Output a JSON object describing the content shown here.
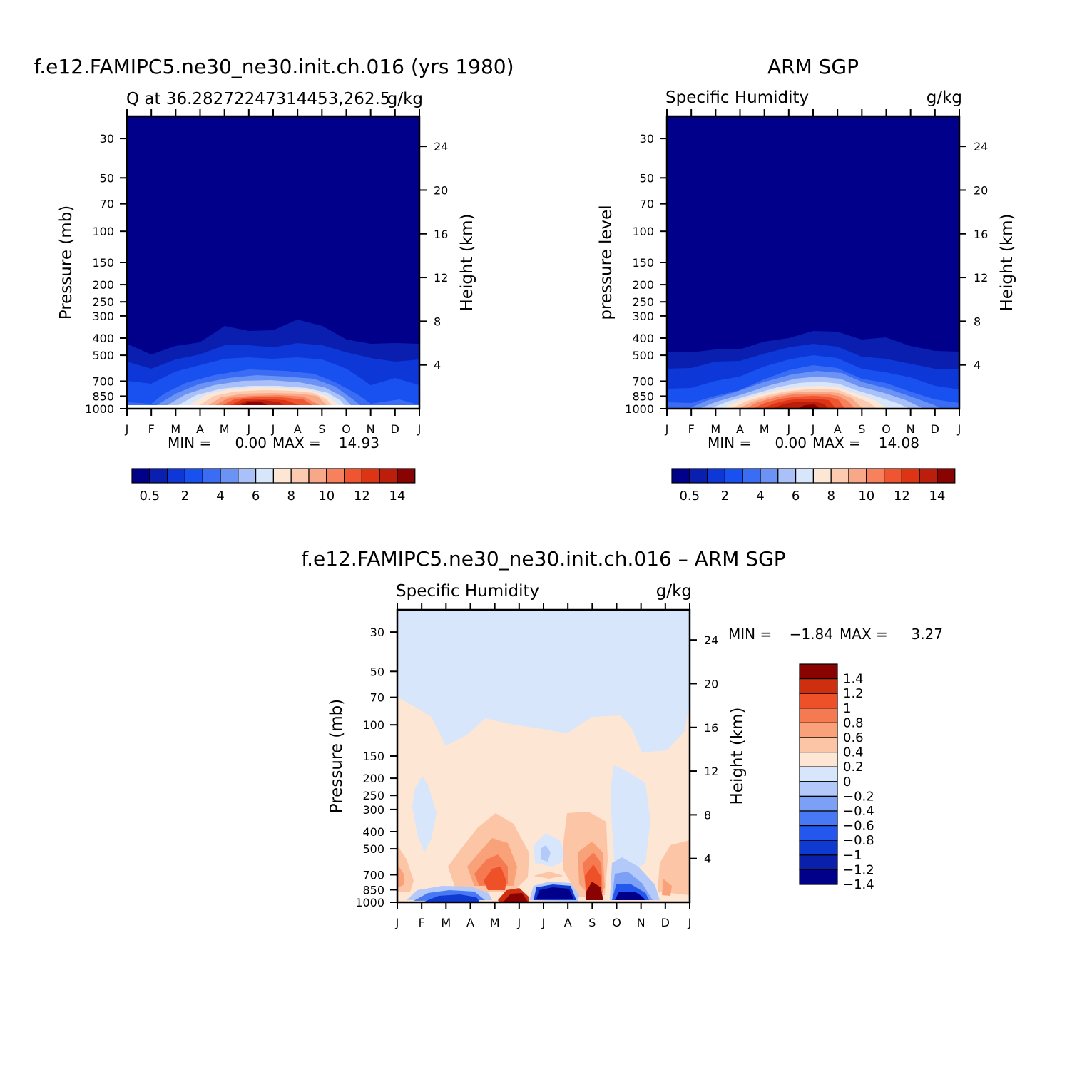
{
  "chart_data": [
    {
      "type": "heatmap",
      "title": "f.e12.FAMIPC5.ne30_ne30.init.ch.016 (yrs 1980)",
      "subtitle_left": "Q at 36.28272247314453,262.5",
      "subtitle_right": "g/kg",
      "ylabel": "Pressure (mb)",
      "ylabel_right": "Height (km)",
      "x_ticks": [
        "J",
        "F",
        "M",
        "A",
        "M",
        "J",
        "J",
        "A",
        "S",
        "O",
        "N",
        "D",
        "J"
      ],
      "y_ticks": [
        "30",
        "50",
        "70",
        "100",
        "150",
        "200",
        "250",
        "300",
        "400",
        "500",
        "700",
        "850",
        "1000"
      ],
      "y_right_ticks": [
        "24",
        "20",
        "16",
        "12",
        "8",
        "4"
      ],
      "stats": {
        "min_label": "MIN =",
        "min": "0.00",
        "max_label": "MAX =",
        "max": "14.93"
      },
      "colorbar_labels": [
        "0.5",
        "2",
        "4",
        "6",
        "8",
        "10",
        "12",
        "14"
      ]
    },
    {
      "type": "heatmap",
      "title": "ARM SGP",
      "subtitle_left": "Specific Humidity",
      "subtitle_right": "g/kg",
      "ylabel": "pressure level",
      "ylabel_right": "Height (km)",
      "x_ticks": [
        "J",
        "F",
        "M",
        "A",
        "M",
        "J",
        "J",
        "A",
        "S",
        "O",
        "N",
        "D",
        "J"
      ],
      "y_ticks": [
        "30",
        "50",
        "70",
        "100",
        "150",
        "200",
        "250",
        "300",
        "400",
        "500",
        "700",
        "850",
        "1000"
      ],
      "y_right_ticks": [
        "24",
        "20",
        "16",
        "12",
        "8",
        "4"
      ],
      "stats": {
        "min_label": "MIN =",
        "min": "0.00",
        "max_label": "MAX =",
        "max": "14.08"
      },
      "colorbar_labels": [
        "0.5",
        "2",
        "4",
        "6",
        "8",
        "10",
        "12",
        "14"
      ]
    },
    {
      "type": "heatmap",
      "title": "f.e12.FAMIPC5.ne30_ne30.init.ch.016 – ARM SGP",
      "subtitle_left": "Specific Humidity",
      "subtitle_right": "g/kg",
      "ylabel": "Pressure (mb)",
      "ylabel_right": "Height (km)",
      "x_ticks": [
        "J",
        "F",
        "M",
        "A",
        "M",
        "J",
        "J",
        "A",
        "S",
        "O",
        "N",
        "D",
        "J"
      ],
      "y_ticks": [
        "30",
        "50",
        "70",
        "100",
        "150",
        "200",
        "250",
        "300",
        "400",
        "500",
        "700",
        "850",
        "1000"
      ],
      "y_right_ticks": [
        "24",
        "20",
        "16",
        "12",
        "8",
        "4"
      ],
      "stats": {
        "min_label": "MIN =",
        "min": "−1.84",
        "max_label": "MAX =",
        "max": "3.27"
      },
      "colorbar_labels": [
        "1.4",
        "1.2",
        "1",
        "0.8",
        "0.6",
        "0.4",
        "0.2",
        "0",
        "−0.2",
        "−0.4",
        "−0.6",
        "−0.8",
        "−1",
        "−1.2",
        "−1.4"
      ]
    }
  ],
  "palettes": {
    "sequential": [
      "#00008a",
      "#0a1fb0",
      "#0d37d6",
      "#1950f0",
      "#3a6cf4",
      "#6b92f5",
      "#a9c1f8",
      "#d8e6fb",
      "#fde6d4",
      "#fccab1",
      "#f9a887",
      "#f6815c",
      "#ef5530",
      "#dd3415",
      "#bb1f0c",
      "#8a0303"
    ],
    "diverging": [
      "#00008a",
      "#0a20ad",
      "#0f3ad2",
      "#2457ee",
      "#4878f3",
      "#7ca0f6",
      "#b3c9f9",
      "#d8e6fb",
      "#fde6d4",
      "#fcc5a6",
      "#f9a27a",
      "#f57a52",
      "#ee5028",
      "#cf2e0f",
      "#8a0303"
    ]
  }
}
